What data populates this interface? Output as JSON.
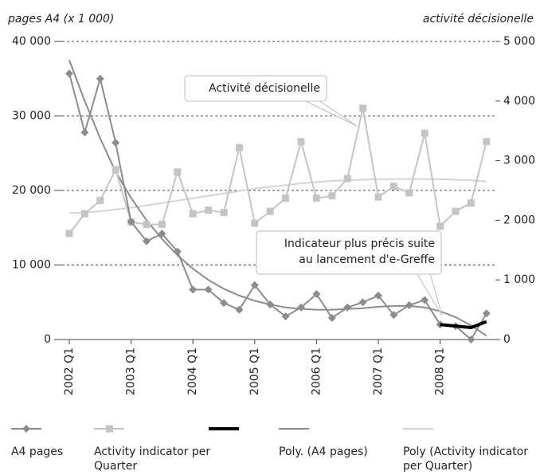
{
  "chart_data": {
    "type": "line",
    "y_label": "pages A4 (x 1 000)",
    "y2_label": "activité décisionelle",
    "categories": [
      "2002 Q1",
      null,
      null,
      null,
      "2003 Q1",
      null,
      null,
      null,
      "2004 Q1",
      null,
      null,
      null,
      "2005 Q1",
      null,
      null,
      null,
      "2006 Q1",
      null,
      null,
      null,
      "2007 Q1",
      null,
      null,
      null,
      "2008 Q1",
      null,
      null,
      null
    ],
    "ylim": [
      0,
      40000
    ],
    "yticks": [
      0,
      {
        "value": 10000,
        "label": "10 000"
      },
      {
        "value": 20000,
        "label": "20 000"
      },
      {
        "value": 30000,
        "label": "30 000"
      },
      {
        "value": 40000,
        "label": "40 000"
      }
    ],
    "y2lim": [
      0,
      5000
    ],
    "y2ticks": [
      0,
      {
        "value": 1000,
        "label": "1 000"
      },
      {
        "value": 2000,
        "label": "2 000"
      },
      {
        "value": 3000,
        "label": "3 000"
      },
      {
        "value": 4000,
        "label": "4 000"
      },
      {
        "value": 5000,
        "label": "5 000"
      }
    ],
    "grid": true,
    "series": [
      {
        "name": "A4 pages",
        "color": "#8c8c8c",
        "marker": "diamond",
        "values": [
          35700,
          27800,
          35000,
          26400,
          15800,
          13200,
          14200,
          11800,
          6700,
          6700,
          4900,
          4000,
          7300,
          4700,
          3100,
          4300,
          6100,
          2900,
          4300,
          5000,
          5900,
          3300,
          4600,
          5300,
          2000,
          1800,
          0,
          3500
        ]
      },
      {
        "name": "Activity indicator per Quarter",
        "color": "#c4c4c4",
        "marker": "square",
        "axis": "y2",
        "values": [
          1780,
          2110,
          2330,
          2850,
          1970,
          1930,
          1930,
          2810,
          2110,
          2170,
          2130,
          3220,
          1950,
          2150,
          2370,
          3320,
          2370,
          2410,
          2700,
          3880,
          2390,
          2570,
          2460,
          3460,
          1900,
          2150,
          2290,
          3320
        ]
      },
      {
        "color": "#000000",
        "width": 4,
        "values": [
          null,
          null,
          null,
          null,
          null,
          null,
          null,
          null,
          null,
          null,
          null,
          null,
          null,
          null,
          null,
          null,
          null,
          null,
          null,
          null,
          null,
          null,
          null,
          null,
          2000,
          1800,
          1600,
          2400
        ]
      },
      {
        "name": "Poly. (A4 pages)",
        "color": "#8c8c8c",
        "values": [
          37500,
          32000,
          27000,
          22500,
          19000,
          16000,
          13500,
          11300,
          9500,
          8000,
          6800,
          5900,
          5200,
          4700,
          4300,
          4100,
          4000,
          4000,
          4100,
          4200,
          4400,
          4500,
          4500,
          4300,
          3800,
          3000,
          1900,
          500
        ]
      },
      {
        "name": "Poly (Activity indicator per Quarter)",
        "color": "#d4d4d4",
        "axis": "y2",
        "values": [
          2120,
          2130,
          2150,
          2180,
          2210,
          2250,
          2290,
          2330,
          2370,
          2410,
          2450,
          2490,
          2530,
          2560,
          2590,
          2620,
          2640,
          2660,
          2670,
          2680,
          2690,
          2690,
          2690,
          2690,
          2690,
          2680,
          2670,
          2650
        ]
      }
    ],
    "annotations": [
      {
        "lines": [
          "Activité décisionelle"
        ]
      },
      {
        "lines": [
          "Indicateur plus précis suite",
          "au lancement d'e-Greffe"
        ]
      }
    ]
  }
}
